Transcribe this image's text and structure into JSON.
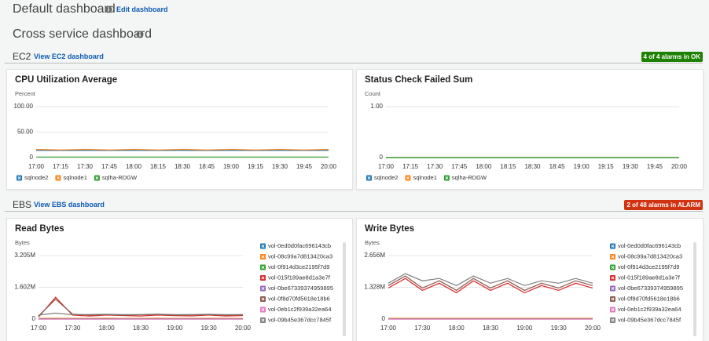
{
  "header": {
    "title": "Default dashboard",
    "edit_link": "Edit dashboard"
  },
  "dashboard_title": "Cross service dashboard",
  "sections": [
    {
      "name": "EC2",
      "link": "View EC2 dashboard",
      "badge": "4 of 4 alarms in OK"
    },
    {
      "name": "EBS",
      "link": "View EBS dashboard",
      "badge": "2 of 48 alarms in ALARM"
    }
  ],
  "chart_data": [
    {
      "type": "line",
      "title": "CPU Utilization Average",
      "y_label": "Percent",
      "legend": "bottom",
      "x": [
        "17:00",
        "17:15",
        "17:30",
        "17:45",
        "18:00",
        "18:15",
        "18:30",
        "18:45",
        "19:00",
        "19:15",
        "19:30",
        "19:45",
        "20:00"
      ],
      "ylim": [
        0,
        100
      ],
      "yticks": [
        0,
        {
          "value": 50,
          "label": "50.00"
        },
        {
          "value": 100,
          "label": "100.00"
        }
      ],
      "grid": true,
      "series": [
        {
          "name": "sqlnode2",
          "color": "#1f77b4",
          "values": [
            14,
            14,
            14,
            14,
            14,
            14,
            14,
            14,
            14,
            14,
            14,
            14,
            14
          ]
        },
        {
          "name": "sqlnode1",
          "color": "#ff7f0e",
          "values": [
            16,
            15,
            16,
            15,
            16,
            15,
            16,
            15,
            16,
            15,
            16,
            15,
            16
          ]
        },
        {
          "name": "sqlha-RDGW",
          "color": "#2ca02c",
          "values": [
            1,
            1,
            1,
            1,
            1,
            1,
            1,
            1,
            1,
            1,
            1,
            1,
            1
          ]
        }
      ]
    },
    {
      "type": "line",
      "title": "Status Check Failed Sum",
      "y_label": "Count",
      "legend": "bottom",
      "x": [
        "17:00",
        "17:15",
        "17:30",
        "17:45",
        "18:00",
        "18:15",
        "18:30",
        "18:45",
        "19:00",
        "19:15",
        "19:30",
        "19:45",
        "20:00"
      ],
      "ylim": [
        0,
        1
      ],
      "yticks": [
        0,
        {
          "value": 1,
          "label": "1.00"
        }
      ],
      "grid": true,
      "series": [
        {
          "name": "sqlnode2",
          "color": "#1f77b4",
          "values": [
            0,
            0,
            0,
            0,
            0,
            0,
            0,
            0,
            0,
            0,
            0,
            0,
            0
          ]
        },
        {
          "name": "sqlnode1",
          "color": "#ff7f0e",
          "values": [
            0,
            0,
            0,
            0,
            0,
            0,
            0,
            0,
            0,
            0,
            0,
            0,
            0
          ]
        },
        {
          "name": "sqlha-RDGW",
          "color": "#2ca02c",
          "values": [
            0,
            0,
            0,
            0,
            0,
            0,
            0,
            0,
            0,
            0,
            0,
            0,
            0
          ]
        }
      ]
    },
    {
      "type": "line",
      "title": "Read Bytes",
      "y_label": "Bytes",
      "legend": "right",
      "x": [
        "17:00",
        null,
        "17:30",
        null,
        "18:00",
        null,
        "18:30",
        null,
        "19:00",
        null,
        "19:30",
        null,
        "20:00"
      ],
      "ylim": [
        0,
        3205000
      ],
      "yticks": [
        0,
        {
          "value": 1602000,
          "label": "1.602M"
        },
        {
          "value": 3205000,
          "label": "3.205M"
        }
      ],
      "grid": true,
      "series": [
        {
          "name": "vol-0ed0d0fac696143cb",
          "color": "#1f77b4",
          "values": [
            20000,
            20000,
            20000,
            20000,
            20000,
            20000,
            20000,
            20000,
            20000,
            20000,
            20000,
            20000,
            20000
          ]
        },
        {
          "name": "vol-08c99a7d813420ca3",
          "color": "#ff7f0e",
          "values": [
            30000,
            40000,
            30000,
            30000,
            40000,
            30000,
            30000,
            40000,
            30000,
            30000,
            40000,
            30000,
            30000
          ]
        },
        {
          "name": "vol-0f914d3ce2195f7d9",
          "color": "#2ca02c",
          "values": [
            10000,
            10000,
            10000,
            10000,
            10000,
            10000,
            10000,
            10000,
            10000,
            10000,
            10000,
            10000,
            10000
          ]
        },
        {
          "name": "vol-015f189ae8d1a3e7f",
          "color": "#d62728",
          "values": [
            100000,
            1100000,
            200000,
            150000,
            200000,
            180000,
            150000,
            200000,
            170000,
            160000,
            200000,
            150000,
            180000
          ]
        },
        {
          "name": "vol-0be67339374959895",
          "color": "#9467bd",
          "values": [
            0,
            0,
            0,
            0,
            0,
            0,
            0,
            0,
            0,
            0,
            0,
            0,
            0
          ]
        },
        {
          "name": "vol-0f8d70fd5618e18b6",
          "color": "#8c564b",
          "values": [
            150000,
            1000000,
            250000,
            200000,
            220000,
            200000,
            210000,
            230000,
            200000,
            210000,
            220000,
            200000,
            210000
          ]
        },
        {
          "name": "vol-0eb1c2f939a32ea64",
          "color": "#e377c2",
          "values": [
            0,
            0,
            0,
            0,
            0,
            0,
            0,
            0,
            0,
            0,
            0,
            0,
            0
          ]
        },
        {
          "name": "vol-09b45e367dcc7845f",
          "color": "#7f7f7f",
          "values": [
            200000,
            300000,
            220000,
            230000,
            240000,
            220000,
            230000,
            250000,
            220000,
            230000,
            240000,
            220000,
            230000
          ]
        }
      ]
    },
    {
      "type": "line",
      "title": "Write Bytes",
      "y_label": "Bytes",
      "legend": "right",
      "x": [
        "17:00",
        null,
        "17:30",
        null,
        "18:00",
        null,
        "18:30",
        null,
        "19:00",
        null,
        "19:30",
        null,
        "20:00"
      ],
      "ylim": [
        0,
        2656000
      ],
      "yticks": [
        0,
        {
          "value": 1328000,
          "label": "1.328M"
        },
        {
          "value": 2656000,
          "label": "2.656M"
        }
      ],
      "grid": true,
      "series": [
        {
          "name": "vol-0ed0d0fac696143cb",
          "color": "#1f77b4",
          "values": [
            20000,
            20000,
            20000,
            20000,
            20000,
            20000,
            20000,
            20000,
            20000,
            20000,
            20000,
            20000,
            20000
          ]
        },
        {
          "name": "vol-08c99a7d813420ca3",
          "color": "#ff7f0e",
          "values": [
            30000,
            30000,
            30000,
            30000,
            30000,
            30000,
            30000,
            30000,
            30000,
            30000,
            30000,
            30000,
            30000
          ]
        },
        {
          "name": "vol-0f914d3ce2195f7d9",
          "color": "#2ca02c",
          "values": [
            10000,
            10000,
            10000,
            10000,
            10000,
            10000,
            10000,
            10000,
            10000,
            10000,
            10000,
            10000,
            10000
          ]
        },
        {
          "name": "vol-015f189ae8d1a3e7f",
          "color": "#d62728",
          "values": [
            1300000,
            1700000,
            1200000,
            1500000,
            1100000,
            1600000,
            1200000,
            1500000,
            1100000,
            1400000,
            1200000,
            1500000,
            1300000
          ]
        },
        {
          "name": "vol-0be67339374959895",
          "color": "#9467bd",
          "values": [
            0,
            0,
            0,
            0,
            0,
            0,
            0,
            0,
            0,
            0,
            0,
            0,
            0
          ]
        },
        {
          "name": "vol-0f8d70fd5618e18b6",
          "color": "#8c564b",
          "values": [
            1400000,
            1800000,
            1300000,
            1600000,
            1200000,
            1700000,
            1300000,
            1600000,
            1200000,
            1500000,
            1300000,
            1600000,
            1400000
          ]
        },
        {
          "name": "vol-0eb1c2f939a32ea64",
          "color": "#e377c2",
          "values": [
            0,
            0,
            0,
            0,
            0,
            0,
            0,
            0,
            0,
            0,
            0,
            0,
            0
          ]
        },
        {
          "name": "vol-09b45e367dcc7845f",
          "color": "#7f7f7f",
          "values": [
            1500000,
            1900000,
            1600000,
            1700000,
            1400000,
            1800000,
            1500000,
            1700000,
            1400000,
            1600000,
            1500000,
            1700000,
            1500000
          ]
        }
      ]
    }
  ]
}
